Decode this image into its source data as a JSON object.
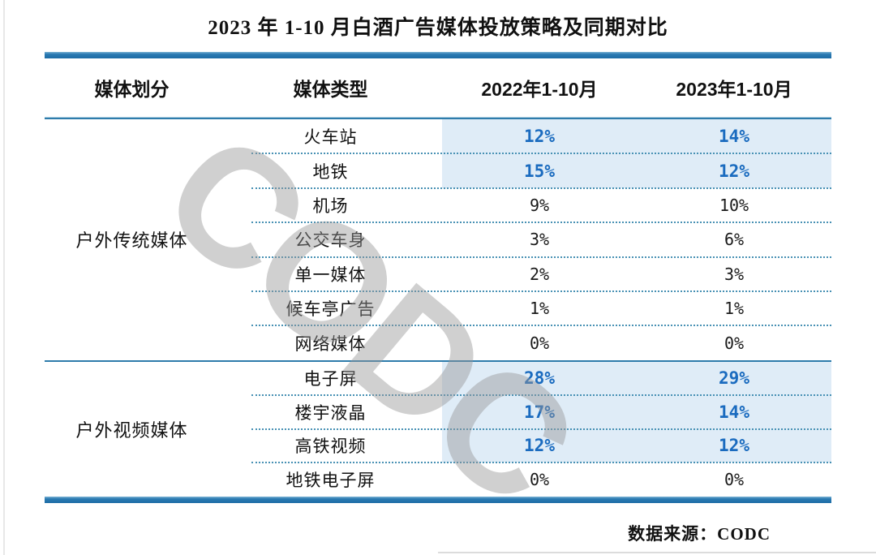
{
  "title": "2023 年 1-10 月白酒广告媒体投放策略及同期对比",
  "watermark": "CODC",
  "source_note": "数据来源：CODC",
  "colors": {
    "accent_bar": "#2173ad",
    "thin_line": "#2e7cab",
    "dotted_line": "#4891b4",
    "highlight_bg": "#dfecf7",
    "highlight_value_text": "#1a6bbf",
    "watermark_gray": "#c9c9c9"
  },
  "table": {
    "columns": [
      "媒体划分",
      "媒体类型",
      "2022年1-10月",
      "2023年1-10月"
    ],
    "groups": [
      {
        "name": "户外传统媒体",
        "rows": [
          {
            "type": "火车站",
            "y2022": "12%",
            "y2023": "14%",
            "highlight": true
          },
          {
            "type": "地铁",
            "y2022": "15%",
            "y2023": "12%",
            "highlight": true
          },
          {
            "type": "机场",
            "y2022": "9%",
            "y2023": "10%",
            "highlight": false
          },
          {
            "type": "公交车身",
            "y2022": "3%",
            "y2023": "6%",
            "highlight": false
          },
          {
            "type": "单一媒体",
            "y2022": "2%",
            "y2023": "3%",
            "highlight": false
          },
          {
            "type": "候车亭广告",
            "y2022": "1%",
            "y2023": "1%",
            "highlight": false
          },
          {
            "type": "网络媒体",
            "y2022": "0%",
            "y2023": "0%",
            "highlight": false
          }
        ]
      },
      {
        "name": "户外视频媒体",
        "rows": [
          {
            "type": "电子屏",
            "y2022": "28%",
            "y2023": "29%",
            "highlight": true
          },
          {
            "type": "楼宇液晶",
            "y2022": "17%",
            "y2023": "14%",
            "highlight": true
          },
          {
            "type": "高铁视频",
            "y2022": "12%",
            "y2023": "12%",
            "highlight": true
          },
          {
            "type": "地铁电子屏",
            "y2022": "0%",
            "y2023": "0%",
            "highlight": false
          }
        ]
      }
    ]
  },
  "chart_data": {
    "type": "table",
    "title": "2023 年 1-10 月白酒广告媒体投放策略及同期对比",
    "columns": [
      "媒体划分",
      "媒体类型",
      "2022年1-10月",
      "2023年1-10月"
    ],
    "rows": [
      [
        "户外传统媒体",
        "火车站",
        "12%",
        "14%"
      ],
      [
        "户外传统媒体",
        "地铁",
        "15%",
        "12%"
      ],
      [
        "户外传统媒体",
        "机场",
        "9%",
        "10%"
      ],
      [
        "户外传统媒体",
        "公交车身",
        "3%",
        "6%"
      ],
      [
        "户外传统媒体",
        "单一媒体",
        "2%",
        "3%"
      ],
      [
        "户外传统媒体",
        "候车亭广告",
        "1%",
        "1%"
      ],
      [
        "户外传统媒体",
        "网络媒体",
        "0%",
        "0%"
      ],
      [
        "户外视频媒体",
        "电子屏",
        "28%",
        "29%"
      ],
      [
        "户外视频媒体",
        "楼宇液晶",
        "17%",
        "14%"
      ],
      [
        "户外视频媒体",
        "高铁视频",
        "12%",
        "12%"
      ],
      [
        "户外视频媒体",
        "地铁电子屏",
        "0%",
        "0%"
      ]
    ],
    "highlighted_rows": [
      "火车站",
      "地铁",
      "电子屏",
      "楼宇液晶",
      "高铁视频"
    ],
    "source": "CODC"
  }
}
